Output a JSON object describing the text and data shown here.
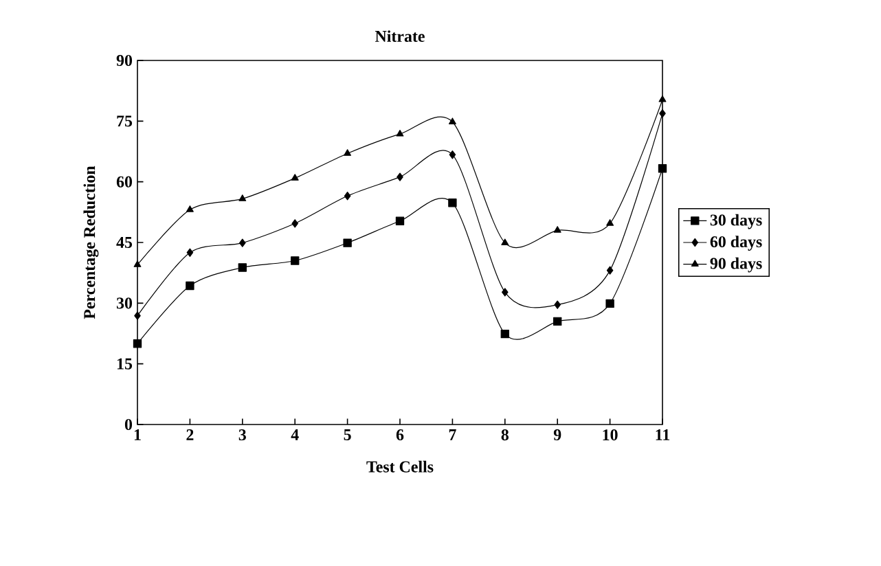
{
  "chart_data": {
    "type": "line",
    "title": "Nitrate",
    "xlabel": "Test Cells",
    "ylabel": "Percentage Reduction",
    "x": [
      1,
      2,
      3,
      4,
      5,
      6,
      7,
      8,
      9,
      10,
      11
    ],
    "series": [
      {
        "name": "30 days",
        "color": "#000000",
        "marker": "square",
        "values": [
          20.0,
          34.3,
          38.8,
          40.5,
          44.9,
          50.3,
          54.8,
          22.4,
          25.5,
          29.9,
          63.3
        ]
      },
      {
        "name": "60 days",
        "color": "#000000",
        "marker": "diamond",
        "values": [
          26.9,
          42.5,
          44.9,
          49.7,
          56.5,
          61.2,
          66.7,
          32.7,
          29.6,
          38.1,
          76.9
        ]
      },
      {
        "name": "90 days",
        "color": "#000000",
        "marker": "triangle",
        "values": [
          39.5,
          53.1,
          55.8,
          60.9,
          67.0,
          71.8,
          74.8,
          44.9,
          48.0,
          49.7,
          80.3
        ]
      }
    ],
    "xlim": [
      1,
      11
    ],
    "xticks": [
      1,
      2,
      3,
      4,
      5,
      6,
      7,
      8,
      9,
      10,
      11
    ],
    "ylim": [
      0,
      90
    ],
    "yticks": [
      0,
      15,
      30,
      45,
      60,
      75,
      90
    ],
    "grid": false,
    "legend": "right"
  }
}
